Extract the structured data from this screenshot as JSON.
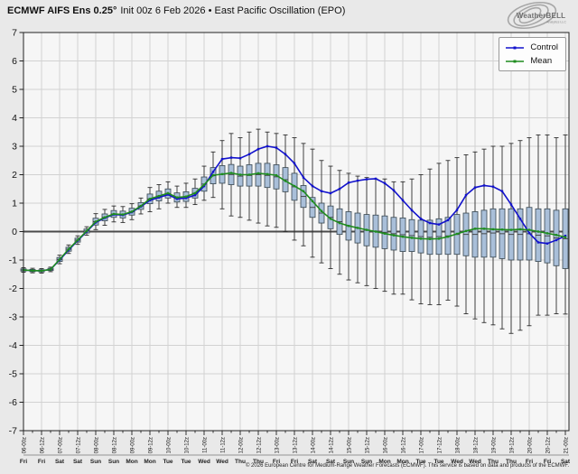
{
  "header": {
    "title_bold": "ECMWF AIFS Ens 0.25°",
    "title_rest": "Init 00z 6 Feb 2026 • East Pacific Oscillation (EPO)"
  },
  "logo": {
    "name": "WeatherBELL",
    "sub": "Analytics LLC"
  },
  "legend": [
    {
      "label": "Control",
      "color": "#1212cc"
    },
    {
      "label": "Mean",
      "color": "#1e8c1e"
    }
  ],
  "footer": {
    "copyright": "© 2026 European Centre for Medium-Range Weather Forecasts (ECMWF). This service is based on data and products of the ECMWF."
  },
  "chart_data": {
    "type": "box+line ensemble plume",
    "title": "ECMWF AIFS Ens 0.25° Init 00z 6 Feb 2026 — East Pacific Oscillation (EPO)",
    "ylim": [
      -7,
      7
    ],
    "y_ticks": [
      7,
      6,
      5,
      4,
      3,
      2,
      1,
      0,
      -1,
      -2,
      -3,
      -4,
      -5,
      -6,
      -7
    ],
    "step_hours": 6,
    "grid": true,
    "legend_position": "upper right",
    "x_tick_labels": [
      "06-00z",
      "06-12z",
      "07-00z",
      "07-12z",
      "08-00z",
      "08-12z",
      "09-00z",
      "09-12z",
      "10-00z",
      "10-12z",
      "11-00z",
      "11-12z",
      "12-00z",
      "12-12z",
      "13-00z",
      "13-12z",
      "14-00z",
      "14-12z",
      "15-00z",
      "15-12z",
      "16-00z",
      "16-12z",
      "17-00z",
      "17-12z",
      "18-00z",
      "18-12z",
      "19-00z",
      "19-12z",
      "20-00z",
      "20-12z",
      "21-00z"
    ],
    "x_day_labels": [
      "Fri",
      "Fri",
      "Sat",
      "Sat",
      "Sun",
      "Sun",
      "Mon",
      "Mon",
      "Tue",
      "Tue",
      "Wed",
      "Wed",
      "Thu",
      "Thu",
      "Fri",
      "Fri",
      "Sat",
      "Sat",
      "Sun",
      "Sun",
      "Mon",
      "Mon",
      "Tue",
      "Tue",
      "Wed",
      "Wed",
      "Thu",
      "Thu",
      "Fri",
      "Fri",
      "Sat"
    ],
    "series": [
      {
        "name": "Control",
        "color": "#1212cc",
        "values": [
          -1.35,
          -1.37,
          -1.38,
          -1.33,
          -1.0,
          -0.65,
          -0.32,
          0.0,
          0.32,
          0.48,
          0.6,
          0.58,
          0.68,
          0.88,
          1.1,
          1.2,
          1.3,
          1.15,
          1.18,
          1.28,
          1.6,
          2.1,
          2.55,
          2.6,
          2.58,
          2.72,
          2.9,
          3.0,
          2.95,
          2.72,
          2.4,
          1.9,
          1.6,
          1.42,
          1.35,
          1.5,
          1.72,
          1.79,
          1.84,
          1.86,
          1.7,
          1.45,
          1.1,
          0.75,
          0.45,
          0.3,
          0.25,
          0.4,
          0.76,
          1.28,
          1.55,
          1.62,
          1.58,
          1.42,
          0.95,
          0.45,
          -0.05,
          -0.38,
          -0.42,
          -0.3,
          -0.15
        ]
      },
      {
        "name": "Mean",
        "color": "#1e8c1e",
        "values": [
          -1.35,
          -1.37,
          -1.38,
          -1.33,
          -0.98,
          -0.62,
          -0.3,
          0.02,
          0.35,
          0.5,
          0.62,
          0.6,
          0.7,
          0.9,
          1.15,
          1.25,
          1.35,
          1.2,
          1.23,
          1.35,
          1.65,
          1.98,
          2.02,
          2.06,
          2.0,
          2.0,
          2.05,
          2.02,
          1.98,
          1.78,
          1.6,
          1.42,
          1.07,
          0.72,
          0.45,
          0.3,
          0.2,
          0.13,
          0.06,
          0.0,
          -0.07,
          -0.13,
          -0.18,
          -0.22,
          -0.25,
          -0.26,
          -0.25,
          -0.18,
          -0.08,
          0.02,
          0.1,
          0.1,
          0.08,
          0.07,
          0.06,
          0.08,
          0.06,
          0.0,
          -0.06,
          -0.12,
          -0.2
        ]
      }
    ],
    "boxes": {
      "fill": "#a9bfd9",
      "q3": [
        -1.31,
        -1.33,
        -1.34,
        -1.29,
        -0.91,
        -0.55,
        -0.23,
        0.09,
        0.47,
        0.62,
        0.74,
        0.72,
        0.82,
        1.02,
        1.32,
        1.42,
        1.5,
        1.36,
        1.4,
        1.52,
        1.92,
        2.25,
        2.32,
        2.36,
        2.3,
        2.35,
        2.4,
        2.4,
        2.35,
        2.25,
        2.05,
        1.62,
        1.2,
        1.0,
        0.9,
        0.8,
        0.7,
        0.65,
        0.6,
        0.58,
        0.55,
        0.5,
        0.48,
        0.42,
        0.4,
        0.4,
        0.45,
        0.5,
        0.6,
        0.65,
        0.7,
        0.75,
        0.8,
        0.8,
        0.8,
        0.8,
        0.85,
        0.8,
        0.8,
        0.75,
        0.8
      ],
      "q1": [
        -1.39,
        -1.41,
        -1.42,
        -1.37,
        -1.05,
        -0.69,
        -0.37,
        -0.05,
        0.23,
        0.38,
        0.5,
        0.48,
        0.58,
        0.78,
        0.98,
        1.08,
        1.18,
        1.04,
        1.06,
        1.18,
        1.42,
        1.68,
        1.7,
        1.65,
        1.6,
        1.6,
        1.6,
        1.55,
        1.5,
        1.4,
        1.1,
        0.85,
        0.5,
        0.3,
        0.1,
        -0.1,
        -0.3,
        -0.4,
        -0.5,
        -0.55,
        -0.6,
        -0.65,
        -0.7,
        -0.7,
        -0.75,
        -0.8,
        -0.8,
        -0.8,
        -0.8,
        -0.85,
        -0.9,
        -0.9,
        -0.9,
        -0.95,
        -1.0,
        -1.0,
        -1.0,
        -1.05,
        -1.1,
        -1.2,
        -1.3
      ],
      "max": [
        -1.27,
        -1.29,
        -1.3,
        -1.25,
        -0.83,
        -0.47,
        -0.15,
        0.17,
        0.63,
        0.78,
        0.9,
        0.88,
        0.98,
        1.18,
        1.55,
        1.65,
        1.75,
        1.6,
        1.7,
        1.85,
        2.3,
        2.8,
        3.2,
        3.45,
        3.3,
        3.5,
        3.6,
        3.5,
        3.45,
        3.4,
        3.3,
        3.1,
        2.9,
        2.5,
        2.3,
        2.15,
        2.05,
        1.95,
        1.9,
        1.85,
        1.85,
        1.75,
        1.75,
        1.85,
        2.0,
        2.2,
        2.4,
        2.5,
        2.6,
        2.7,
        2.8,
        2.9,
        3.0,
        3.0,
        3.1,
        3.2,
        3.3,
        3.4,
        3.4,
        3.3,
        3.4
      ],
      "min": [
        -1.43,
        -1.45,
        -1.46,
        -1.41,
        -1.13,
        -0.77,
        -0.45,
        -0.13,
        0.07,
        0.22,
        0.34,
        0.32,
        0.42,
        0.62,
        0.7,
        0.8,
        1.0,
        0.85,
        0.85,
        0.95,
        1.1,
        1.2,
        0.8,
        0.55,
        0.5,
        0.4,
        0.3,
        0.2,
        0.15,
        0.0,
        -0.3,
        -0.5,
        -0.9,
        -1.1,
        -1.3,
        -1.5,
        -1.7,
        -1.8,
        -1.9,
        -2.0,
        -2.1,
        -2.2,
        -2.2,
        -2.4,
        -2.54,
        -2.57,
        -2.57,
        -2.41,
        -2.62,
        -2.89,
        -3.07,
        -3.2,
        -3.28,
        -3.42,
        -3.58,
        -3.47,
        -3.31,
        -2.94,
        -2.94,
        -2.89,
        -2.9
      ]
    },
    "colors": {
      "zero_line": "#4a4a4a",
      "grid": "#d2d2d2",
      "plot_bg": "#f6f6f6",
      "page_bg": "#e9e9e9"
    }
  }
}
